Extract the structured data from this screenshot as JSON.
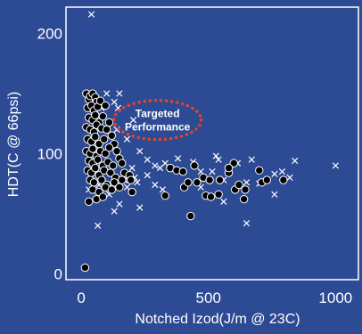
{
  "chart_data": {
    "type": "scatter",
    "xlabel": "Notched Izod(J/m @ 23C)",
    "ylabel": "HDT(C @ 66psi)",
    "xlim": [
      -60,
      1090
    ],
    "ylim": [
      -5,
      222
    ],
    "x_ticks": [
      0,
      500,
      1000
    ],
    "x_tick_labels": [
      "0",
      "500",
      "1000"
    ],
    "y_ticks": [
      0,
      100,
      200
    ],
    "y_tick_labels": [
      "0",
      "100",
      "200"
    ],
    "grid": false,
    "annotation": {
      "lines": [
        "Targeted",
        "Performance"
      ],
      "x": 300,
      "y": 128,
      "color": "#e0452c",
      "style": "dotted-ellipse"
    },
    "colors": {
      "background": "#2d4a94",
      "frame": "#ffffff",
      "marker": "#ffffff",
      "filled_marker": "#000000"
    },
    "series": [
      {
        "marker": "circle",
        "points": [
          [
            20,
            150
          ],
          [
            30,
            145
          ],
          [
            35,
            148
          ],
          [
            45,
            150
          ],
          [
            55,
            147
          ],
          [
            60,
            143
          ],
          [
            25,
            138
          ],
          [
            40,
            140
          ],
          [
            50,
            136
          ],
          [
            65,
            139
          ],
          [
            75,
            144
          ],
          [
            30,
            130
          ],
          [
            45,
            128
          ],
          [
            55,
            132
          ],
          [
            70,
            126
          ],
          [
            85,
            131
          ],
          [
            95,
            140
          ],
          [
            20,
            122
          ],
          [
            35,
            120
          ],
          [
            50,
            118
          ],
          [
            60,
            124
          ],
          [
            80,
            121
          ],
          [
            100,
            120
          ],
          [
            110,
            126
          ],
          [
            25,
            112
          ],
          [
            40,
            110
          ],
          [
            55,
            114
          ],
          [
            70,
            108
          ],
          [
            90,
            112
          ],
          [
            120,
            115
          ],
          [
            130,
            108
          ],
          [
            20,
            102
          ],
          [
            35,
            100
          ],
          [
            45,
            104
          ],
          [
            60,
            98
          ],
          [
            75,
            102
          ],
          [
            95,
            100
          ],
          [
            110,
            105
          ],
          [
            140,
            102
          ],
          [
            150,
            96
          ],
          [
            30,
            94
          ],
          [
            45,
            92
          ],
          [
            65,
            95
          ],
          [
            85,
            90
          ],
          [
            105,
            93
          ],
          [
            125,
            90
          ],
          [
            160,
            92
          ],
          [
            25,
            86
          ],
          [
            40,
            84
          ],
          [
            55,
            88
          ],
          [
            70,
            82
          ],
          [
            90,
            86
          ],
          [
            115,
            84
          ],
          [
            135,
            80
          ],
          [
            170,
            84
          ],
          [
            35,
            78
          ],
          [
            50,
            76
          ],
          [
            80,
            78
          ],
          [
            100,
            74
          ],
          [
            130,
            76
          ],
          [
            160,
            78
          ],
          [
            45,
            70
          ],
          [
            70,
            68
          ],
          [
            95,
            72
          ],
          [
            60,
            62
          ],
          [
            85,
            64
          ],
          [
            120,
            70
          ],
          [
            150,
            72
          ],
          [
            190,
            82
          ],
          [
            195,
            78
          ],
          [
            15,
            5
          ],
          [
            30,
            60
          ],
          [
            200,
            68
          ],
          [
            350,
            88
          ],
          [
            375,
            86
          ],
          [
            400,
            85
          ],
          [
            405,
            72
          ],
          [
            420,
            76
          ],
          [
            445,
            90
          ],
          [
            455,
            76
          ],
          [
            480,
            80
          ],
          [
            490,
            65
          ],
          [
            510,
            64
          ],
          [
            540,
            66
          ],
          [
            545,
            78
          ],
          [
            580,
            84
          ],
          [
            600,
            92
          ],
          [
            605,
            70
          ],
          [
            620,
            74
          ],
          [
            640,
            62
          ],
          [
            645,
            70
          ],
          [
            700,
            86
          ],
          [
            710,
            76
          ],
          [
            730,
            78
          ],
          [
            795,
            78
          ],
          [
            330,
            65
          ],
          [
            430,
            48
          ],
          [
            505,
            78
          ],
          [
            580,
            88
          ]
        ]
      },
      {
        "marker": "cross",
        "points": [
          [
            40,
            216
          ],
          [
            80,
            138
          ],
          [
            100,
            150
          ],
          [
            130,
            143
          ],
          [
            150,
            150
          ],
          [
            145,
            138
          ],
          [
            205,
            128
          ],
          [
            140,
            120
          ],
          [
            180,
            112
          ],
          [
            230,
            102
          ],
          [
            260,
            95
          ],
          [
            290,
            90
          ],
          [
            310,
            88
          ],
          [
            330,
            92
          ],
          [
            200,
            88
          ],
          [
            210,
            80
          ],
          [
            180,
            72
          ],
          [
            150,
            58
          ],
          [
            110,
            66
          ],
          [
            70,
            74
          ],
          [
            50,
            84
          ],
          [
            30,
            70
          ],
          [
            65,
            40
          ],
          [
            130,
            52
          ],
          [
            170,
            78
          ],
          [
            260,
            82
          ],
          [
            290,
            74
          ],
          [
            220,
            76
          ],
          [
            320,
            70
          ],
          [
            230,
            55
          ],
          [
            380,
            96
          ],
          [
            440,
            93
          ],
          [
            470,
            85
          ],
          [
            515,
            85
          ],
          [
            530,
            98
          ],
          [
            540,
            95
          ],
          [
            470,
            72
          ],
          [
            560,
            78
          ],
          [
            560,
            60
          ],
          [
            615,
            92
          ],
          [
            650,
            76
          ],
          [
            700,
            75
          ],
          [
            760,
            83
          ],
          [
            790,
            85
          ],
          [
            820,
            80
          ],
          [
            840,
            94
          ],
          [
            670,
            95
          ],
          [
            650,
            42
          ],
          [
            760,
            66
          ],
          [
            1000,
            90
          ]
        ]
      }
    ]
  }
}
